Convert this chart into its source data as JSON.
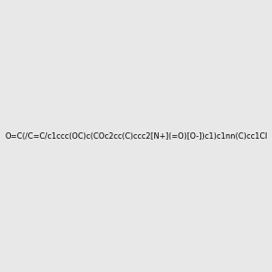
{
  "smiles": "O=C(/C=C/c1ccc(OC)c(COc2cc(C)ccc2[N+](=O)[O-])c1)c1nn(C)cc1Cl",
  "image_size": 300,
  "background_color": "#e8e8e8",
  "title": ""
}
